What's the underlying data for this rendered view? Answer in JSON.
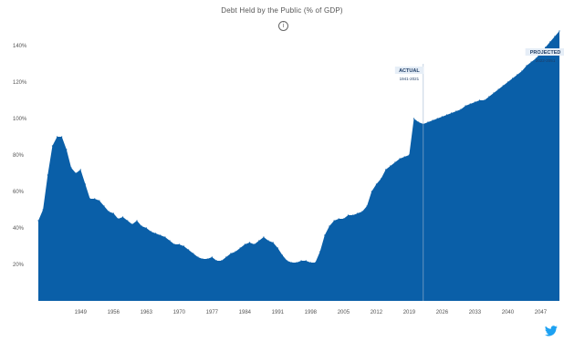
{
  "chart_data": {
    "type": "area",
    "title": "Debt Held by the Public (% of GDP)",
    "xlabel": "",
    "ylabel": "",
    "xlim": [
      1940,
      2051
    ],
    "ylim": [
      0,
      140
    ],
    "y_ticks": [
      20,
      40,
      60,
      80,
      100,
      120,
      140
    ],
    "y_tick_labels": [
      "20%",
      "40%",
      "60%",
      "80%",
      "100%",
      "120%",
      "140%"
    ],
    "x_ticks": [
      1949,
      1956,
      1963,
      1970,
      1977,
      1984,
      1991,
      1998,
      2005,
      2012,
      2019,
      2026,
      2033,
      2040,
      2047
    ],
    "x_tick_labels": [
      "1949",
      "1956",
      "1963",
      "1970",
      "1977",
      "1984",
      "1991",
      "1998",
      "2005",
      "2012",
      "2019",
      "2026",
      "2033",
      "2040",
      "2047"
    ],
    "grid": false,
    "legend": "none",
    "color": "#0a5fa8",
    "divider_year": 2022,
    "annotations": [
      {
        "label": "ACTUAL",
        "sublabel": "1941-2021",
        "x": 2019,
        "y": 125
      },
      {
        "label": "PROJECTED",
        "sublabel": "2022-2051",
        "x": 2048,
        "y": 135
      }
    ],
    "series": [
      {
        "x": [
          1940,
          1941,
          1942,
          1943,
          1944,
          1945,
          1946,
          1947,
          1948,
          1949,
          1950,
          1951,
          1952,
          1953,
          1954,
          1955,
          1956,
          1957,
          1958,
          1959,
          1960,
          1961,
          1962,
          1963,
          1964,
          1965,
          1966,
          1967,
          1968,
          1969,
          1970,
          1971,
          1972,
          1973,
          1974,
          1975,
          1976,
          1977,
          1978,
          1979,
          1980,
          1981,
          1982,
          1983,
          1984,
          1985,
          1986,
          1987,
          1988,
          1989,
          1990,
          1991,
          1992,
          1993,
          1994,
          1995,
          1996,
          1997,
          1998,
          1999,
          2000,
          2001,
          2002,
          2003,
          2004,
          2005,
          2006,
          2007,
          2008,
          2009,
          2010,
          2011,
          2012,
          2013,
          2014,
          2015,
          2016,
          2017,
          2018,
          2019,
          2020,
          2021,
          2022,
          2023,
          2024,
          2025,
          2026,
          2027,
          2028,
          2029,
          2030,
          2031,
          2032,
          2033,
          2034,
          2035,
          2036,
          2037,
          2038,
          2039,
          2040,
          2041,
          2042,
          2043,
          2044,
          2045,
          2046,
          2047,
          2048,
          2049,
          2050,
          2051
        ],
        "values": [
          44,
          50,
          69,
          85,
          90,
          90,
          83,
          73,
          70,
          72,
          64,
          56,
          56,
          55,
          52,
          49,
          48,
          45,
          46,
          44,
          42,
          44,
          41,
          40,
          38,
          37,
          36,
          35,
          33,
          31,
          31,
          30,
          28,
          26,
          24,
          23,
          23,
          24,
          22,
          22,
          24,
          26,
          27,
          29,
          31,
          32,
          31,
          33,
          35,
          33,
          32,
          29,
          25,
          22,
          21,
          21,
          22,
          22,
          21,
          21,
          27,
          36,
          41,
          44,
          45,
          45,
          47,
          47,
          48,
          49,
          52,
          60,
          64,
          67,
          72,
          74,
          76,
          78,
          79,
          80,
          100,
          98,
          97,
          98,
          99,
          100,
          101,
          102,
          103,
          104,
          105,
          107,
          108,
          109,
          110,
          110,
          112,
          114,
          116,
          118,
          120,
          122,
          124,
          126,
          129,
          131,
          133,
          136,
          139,
          142,
          145,
          148
        ]
      }
    ]
  },
  "footer": {
    "share_icon": "twitter-icon"
  }
}
